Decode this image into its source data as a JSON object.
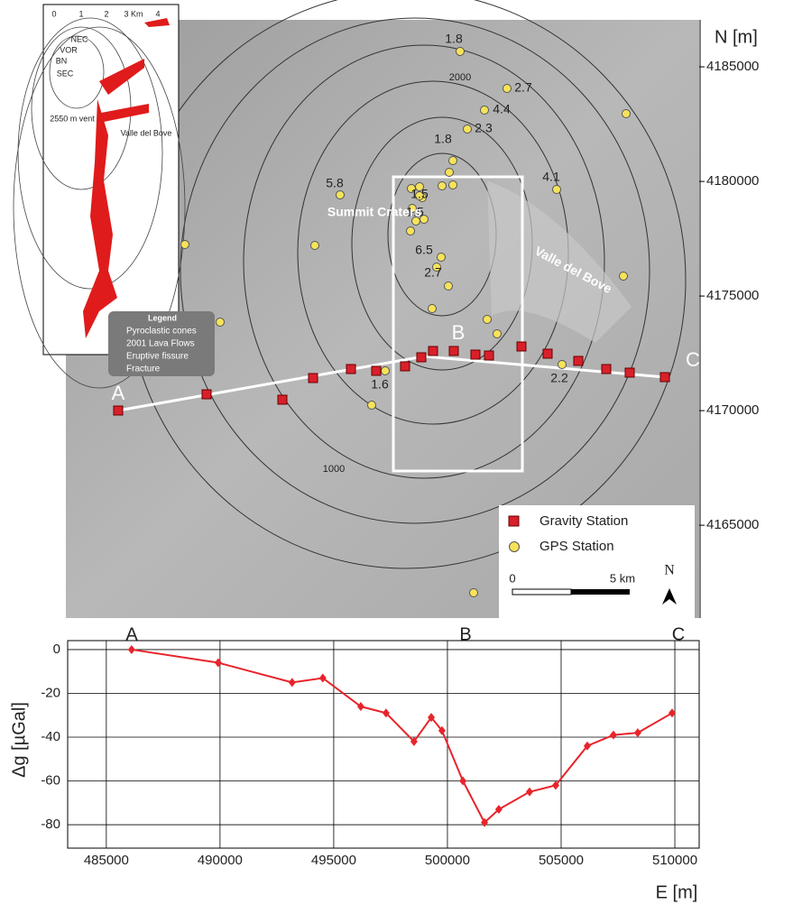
{
  "chart_data": [
    {
      "type": "map",
      "y_label": "N [m]",
      "ylim": [
        4160950,
        4187050
      ],
      "yticks": [
        4185000,
        4180000,
        4175000,
        4170000,
        4165000
      ],
      "profile_labels": [
        "A",
        "B",
        "C"
      ],
      "area_labels": [
        "Summit Craters",
        "Valle del Bove"
      ],
      "contour_labels": [
        "2000",
        "1000"
      ],
      "gps_values": [
        1.8,
        2.7,
        4.4,
        2.3,
        1.8,
        4.1,
        5.8,
        1.5,
        1.5,
        6.5,
        2.7,
        1.6,
        2.2
      ],
      "legend": [
        {
          "name": "Gravity Station",
          "color": "#d9202a"
        },
        {
          "name": "GPS Station",
          "color": "#f6e35a"
        }
      ],
      "scale_labels": [
        "0",
        "5 km"
      ],
      "north_label": "N",
      "inset": {
        "scale_labels": [
          "0",
          "1",
          "2",
          "3 Km",
          "4"
        ],
        "labels": [
          "NEC",
          "VOR",
          "BN",
          "SEC",
          "2550 m vent",
          "Valle del Bove"
        ],
        "legend_title": "Legend",
        "legend": [
          "Pyroclastic cones",
          "2001 Lava Flows",
          "Eruptive fissure",
          "Fracture"
        ]
      }
    },
    {
      "type": "line",
      "y_label": "Δg [µGal]",
      "x_label": "E [m]",
      "color": "#e8242b",
      "annotations": [
        "A",
        "B",
        "C"
      ],
      "x": [
        486110,
        489920,
        493170,
        494520,
        496190,
        497300,
        498530,
        499290,
        499760,
        500680,
        501630,
        502260,
        503610,
        504760,
        506150,
        507300,
        508370,
        509880
      ],
      "values": [
        0,
        -6,
        -15,
        -13,
        -26,
        -29,
        -42,
        -31,
        -37,
        -60,
        -79,
        -73,
        -65,
        -62,
        -44,
        -39,
        -38,
        -29
      ],
      "xlim": [
        483300,
        511070
      ],
      "ylim": [
        -90.7,
        4.1
      ],
      "xticks": [
        485000,
        490000,
        495000,
        500000,
        505000,
        510000
      ],
      "yticks": [
        0,
        -20,
        -40,
        -60,
        -80
      ],
      "grid": true
    }
  ]
}
